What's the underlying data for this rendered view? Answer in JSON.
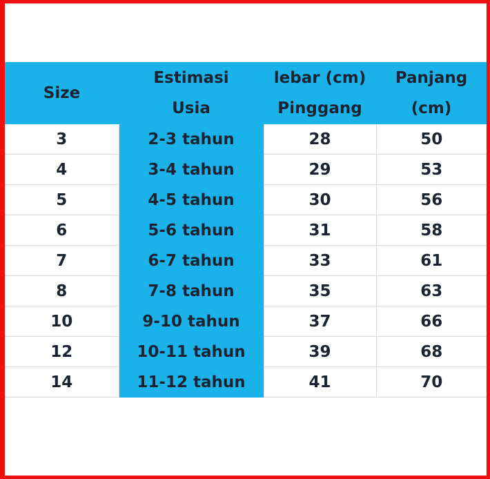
{
  "table": {
    "headers": [
      [
        "Size"
      ],
      [
        "Estimasi",
        "Usia"
      ],
      [
        "lebar (cm)",
        "Pinggang"
      ],
      [
        "Panjang",
        "(cm)"
      ]
    ],
    "rows": [
      [
        "3",
        "2-3 tahun",
        "28",
        "50"
      ],
      [
        "4",
        "3-4 tahun",
        "29",
        "53"
      ],
      [
        "5",
        "4-5 tahun",
        "30",
        "56"
      ],
      [
        "6",
        "5-6 tahun",
        "31",
        "58"
      ],
      [
        "7",
        "6-7 tahun",
        "33",
        "61"
      ],
      [
        "8",
        "7-8 tahun",
        "35",
        "63"
      ],
      [
        "10",
        "9-10 tahun",
        "37",
        "66"
      ],
      [
        "12",
        "10-11 tahun",
        "39",
        "68"
      ],
      [
        "14",
        "11-12 tahun",
        "41",
        "70"
      ]
    ]
  },
  "colors": {
    "header_bg": "#1ab2e8",
    "frame": "#f01010",
    "text": "#1b2333"
  }
}
